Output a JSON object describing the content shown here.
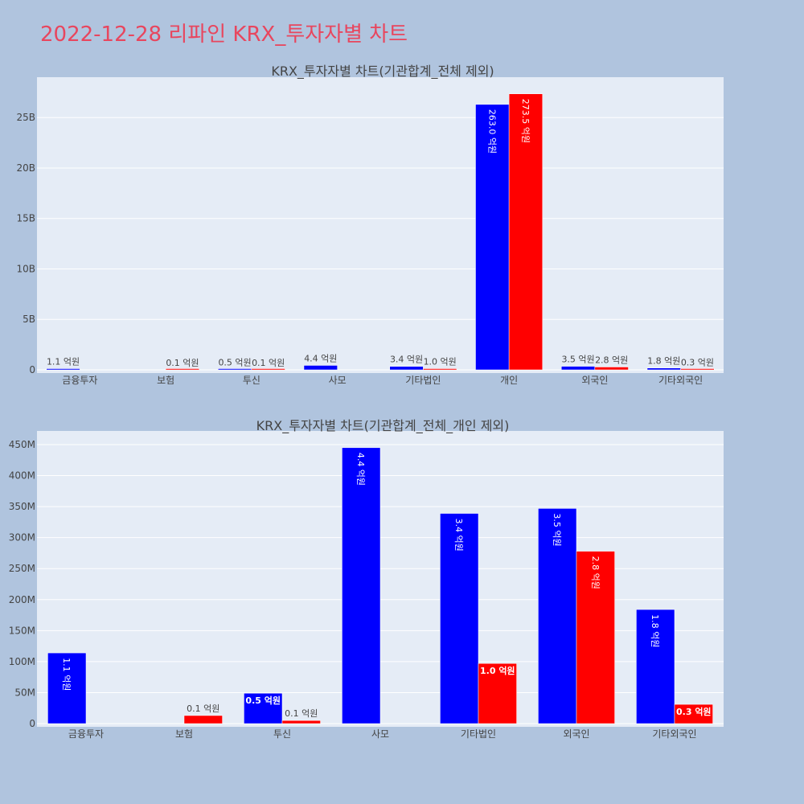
{
  "page_title": "2022-12-28 리파인 KRX_투자자별 차트",
  "colors": {
    "series_a": "#0000ff",
    "series_b": "#ff0000",
    "title": "#e8465e",
    "plot_bg": "#e5ecf6",
    "page_bg": "#b0c4de"
  },
  "chart_data": [
    {
      "type": "bar",
      "title": "KRX_투자자별 차트(기관합계_전체 제외)",
      "categories": [
        "금융투자",
        "보험",
        "투신",
        "사모",
        "기타법인",
        "개인",
        "외국인",
        "기타외국인"
      ],
      "ylim": [
        0,
        29000000000
      ],
      "yticks": [
        0,
        5000000000,
        10000000000,
        15000000000,
        20000000000,
        25000000000
      ],
      "ytick_labels": [
        "0",
        "5B",
        "10B",
        "15B",
        "20B",
        "25B"
      ],
      "grid": true,
      "series": [
        {
          "values": [
            110000000,
            0,
            50000000,
            440000000,
            340000000,
            26300000000,
            350000000,
            180000000
          ],
          "labels": [
            "1.1 억원",
            "",
            "0.5 억원",
            "4.4 억원",
            "3.4 억원",
            "263.0 억원",
            "3.5 억원",
            "1.8 억원"
          ]
        },
        {
          "values": [
            0,
            10000000,
            10000000,
            0,
            100000000,
            27350000000,
            280000000,
            30000000
          ],
          "labels": [
            "",
            "0.1 억원",
            "0.1 억원",
            "",
            "1.0 억원",
            "273.5 억원",
            "2.8 억원",
            "0.3 억원"
          ]
        }
      ]
    },
    {
      "type": "bar",
      "title": "KRX_투자자별 차트(기관합계_전체_개인 제외)",
      "categories": [
        "금융투자",
        "보험",
        "투신",
        "사모",
        "기타법인",
        "외국인",
        "기타외국인"
      ],
      "ylim": [
        0,
        472000000
      ],
      "yticks": [
        0,
        50000000,
        100000000,
        150000000,
        200000000,
        250000000,
        300000000,
        350000000,
        400000000,
        450000000
      ],
      "ytick_labels": [
        "0",
        "50M",
        "100M",
        "150M",
        "200M",
        "250M",
        "300M",
        "350M",
        "400M",
        "450M"
      ],
      "grid": true,
      "series": [
        {
          "values": [
            114000000,
            0,
            49000000,
            445000000,
            339000000,
            347000000,
            184000000
          ],
          "labels": [
            "1.1 억원",
            "",
            "0.5 억원",
            "4.4 억원",
            "3.4 억원",
            "3.5 억원",
            "1.8 억원"
          ]
        },
        {
          "values": [
            0,
            13000000,
            5000000,
            0,
            97000000,
            278000000,
            31000000
          ],
          "labels": [
            "",
            "0.1 억원",
            "0.1 억원",
            "",
            "1.0 억원",
            "2.8 억원",
            "0.3 억원"
          ]
        }
      ]
    }
  ]
}
